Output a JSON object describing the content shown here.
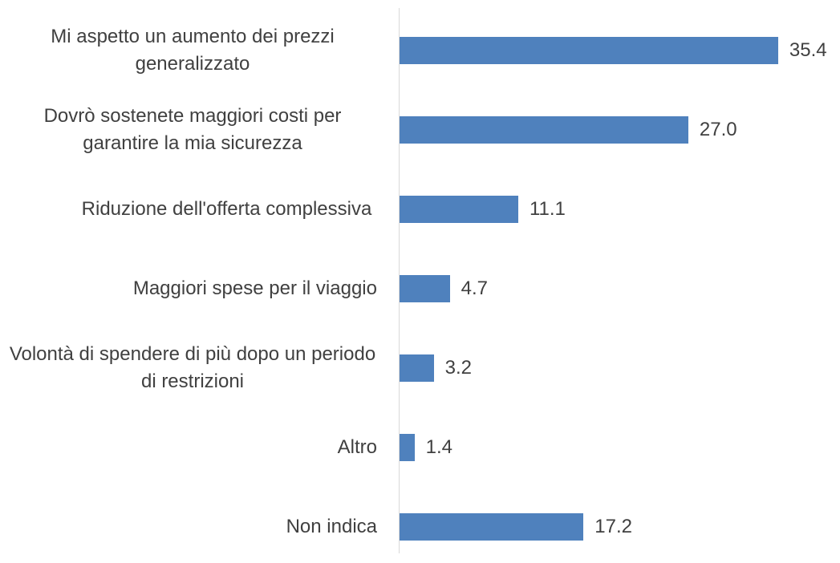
{
  "chart_data": {
    "type": "bar",
    "orientation": "horizontal",
    "categories": [
      "Mi aspetto un aumento dei prezzi generalizzato",
      "Dovrò sostenete maggiori costi per garantire la mia sicurezza",
      "Riduzione dell'offerta complessiva ",
      "Maggiori spese per il viaggio",
      "Volontà di spendere di più dopo un periodo di restrizioni",
      "Altro",
      "Non indica"
    ],
    "values": [
      35.4,
      27,
      11.1,
      4.7,
      3.2,
      1.4,
      17.2
    ],
    "value_labels": [
      "35.4",
      "27.0",
      "11.1",
      "4.7",
      "3.2",
      "1.4",
      "17.2"
    ],
    "color": "#4f81bd"
  }
}
